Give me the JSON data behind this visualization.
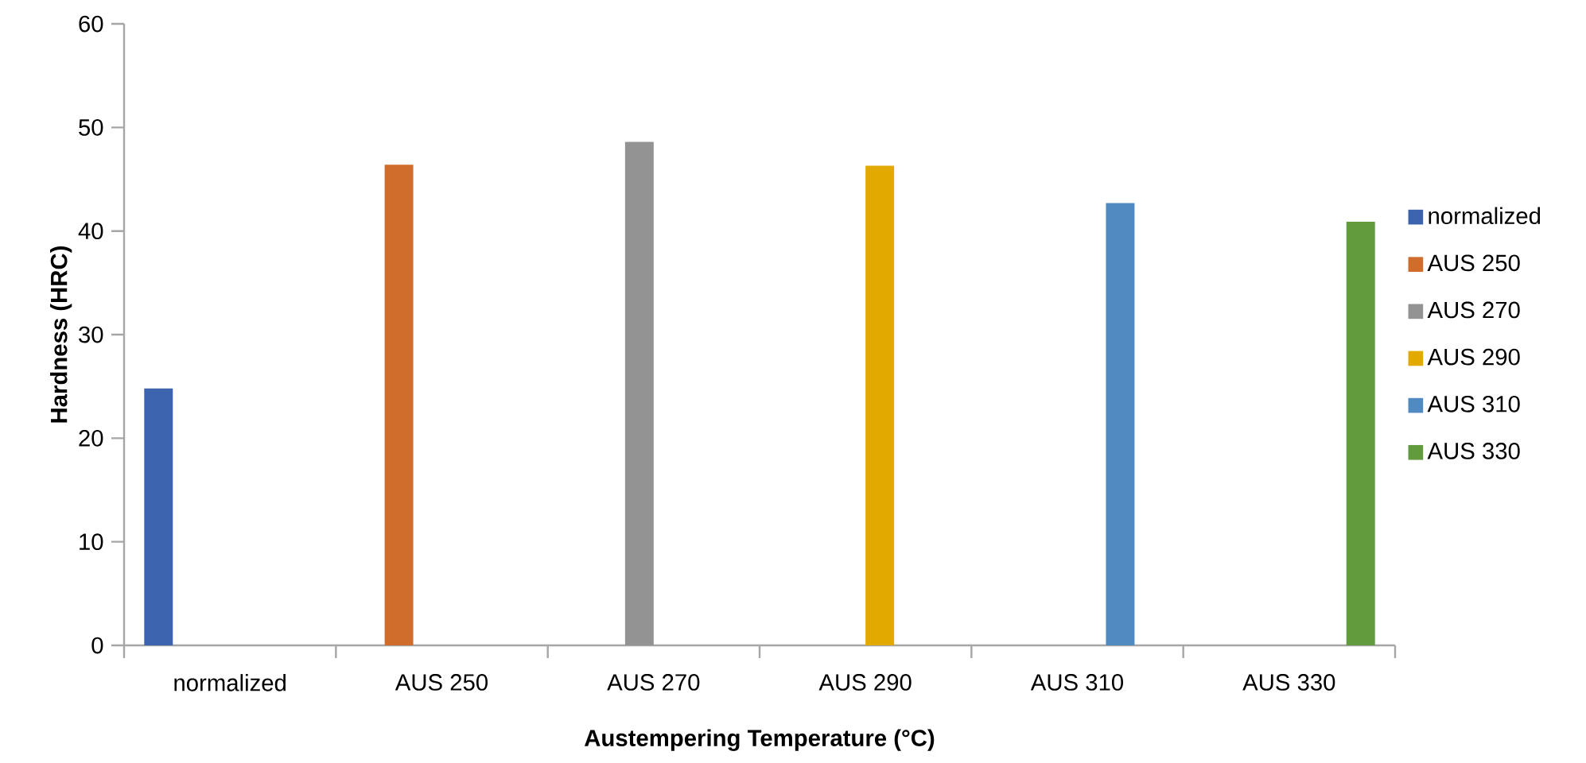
{
  "chart_data": {
    "type": "bar",
    "xlabel": "Austempering Temperature (°C)",
    "ylabel": "Hardness (HRC)",
    "categories": [
      "normalized",
      "AUS 250",
      "AUS 270",
      "AUS 290",
      "AUS 310",
      "AUS 330"
    ],
    "series": [
      {
        "name": "normalized",
        "color": "#3c64ae",
        "values": [
          24.8,
          null,
          null,
          null,
          null,
          null
        ]
      },
      {
        "name": "AUS 250",
        "color": "#d06d2c",
        "values": [
          null,
          46.4,
          null,
          null,
          null,
          null
        ]
      },
      {
        "name": "AUS 270",
        "color": "#939393",
        "values": [
          null,
          null,
          48.6,
          null,
          null,
          null
        ]
      },
      {
        "name": "AUS 290",
        "color": "#e2aa00",
        "values": [
          null,
          null,
          null,
          46.3,
          null,
          null
        ]
      },
      {
        "name": "AUS 310",
        "color": "#518ac0",
        "values": [
          null,
          null,
          null,
          null,
          42.7,
          null
        ]
      },
      {
        "name": "AUS 330",
        "color": "#629a3e",
        "values": [
          null,
          null,
          null,
          null,
          null,
          40.9
        ]
      }
    ],
    "ylim": [
      0,
      60
    ],
    "yticks": [
      0,
      10,
      20,
      30,
      40,
      50,
      60
    ],
    "legend": "right"
  }
}
